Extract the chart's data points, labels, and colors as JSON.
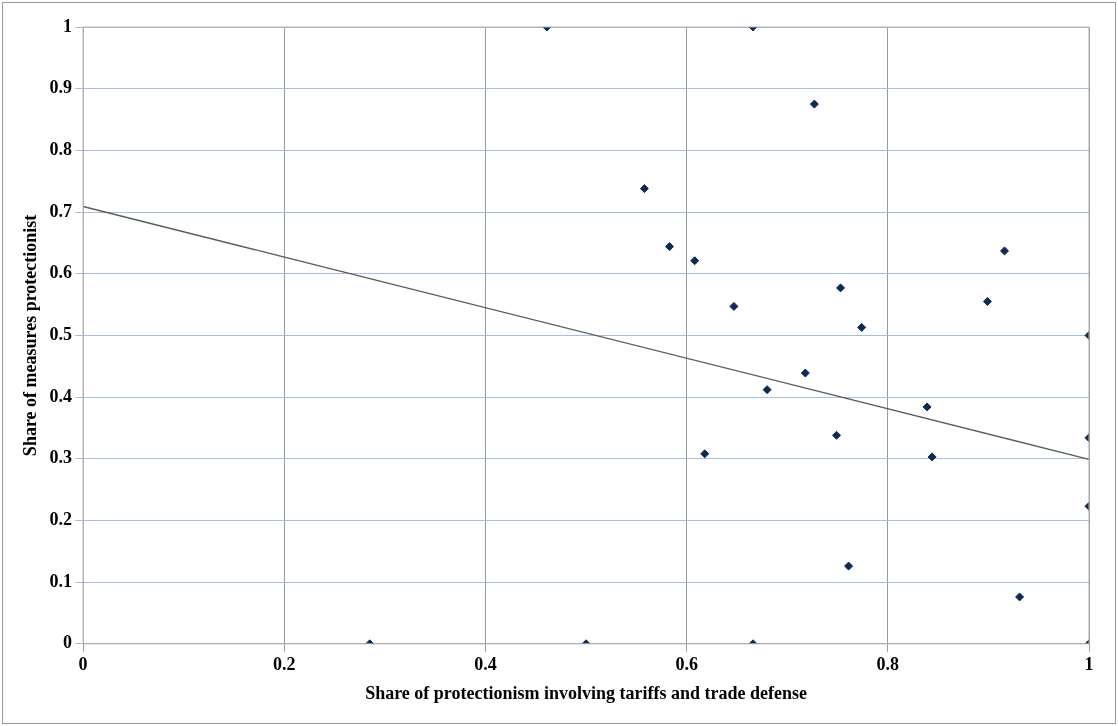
{
  "chart_data": {
    "type": "scatter",
    "xlabel": "Share of protectionism involving tariffs and trade defense",
    "ylabel": "Share of measures protectionist",
    "xlim": [
      0,
      1
    ],
    "xticks": [
      0,
      0.2,
      0.4,
      0.6,
      0.8,
      1
    ],
    "ylim": [
      0,
      1
    ],
    "yticks": [
      0,
      0.1,
      0.2,
      0.3,
      0.4,
      0.5,
      0.6,
      0.7,
      0.8,
      0.9,
      1
    ],
    "grid": true,
    "marker": "diamond",
    "series": [
      {
        "color": "#0d2a52",
        "x": [
          0.285,
          0.461,
          0.666,
          0.727,
          0.558,
          0.583,
          0.608,
          0.916,
          0.753,
          0.647,
          0.899,
          0.774,
          1,
          0.718,
          0.68,
          0.839,
          0.749,
          1,
          0.618,
          0.844,
          1,
          0.761,
          0.931,
          0.5,
          0.666,
          1
        ],
        "values": [
          0,
          1,
          1,
          0.875,
          0.738,
          0.644,
          0.621,
          0.637,
          0.577,
          0.547,
          0.555,
          0.513,
          0.5,
          0.439,
          0.412,
          0.384,
          0.338,
          0.334,
          0.308,
          0.303,
          0.223,
          0.126,
          0.076,
          0,
          0,
          0
        ]
      },
      {
        "type": "line",
        "marker": "none",
        "color": "#595959",
        "x": [
          0,
          1
        ],
        "values": [
          0.709,
          0.299
        ]
      }
    ]
  }
}
